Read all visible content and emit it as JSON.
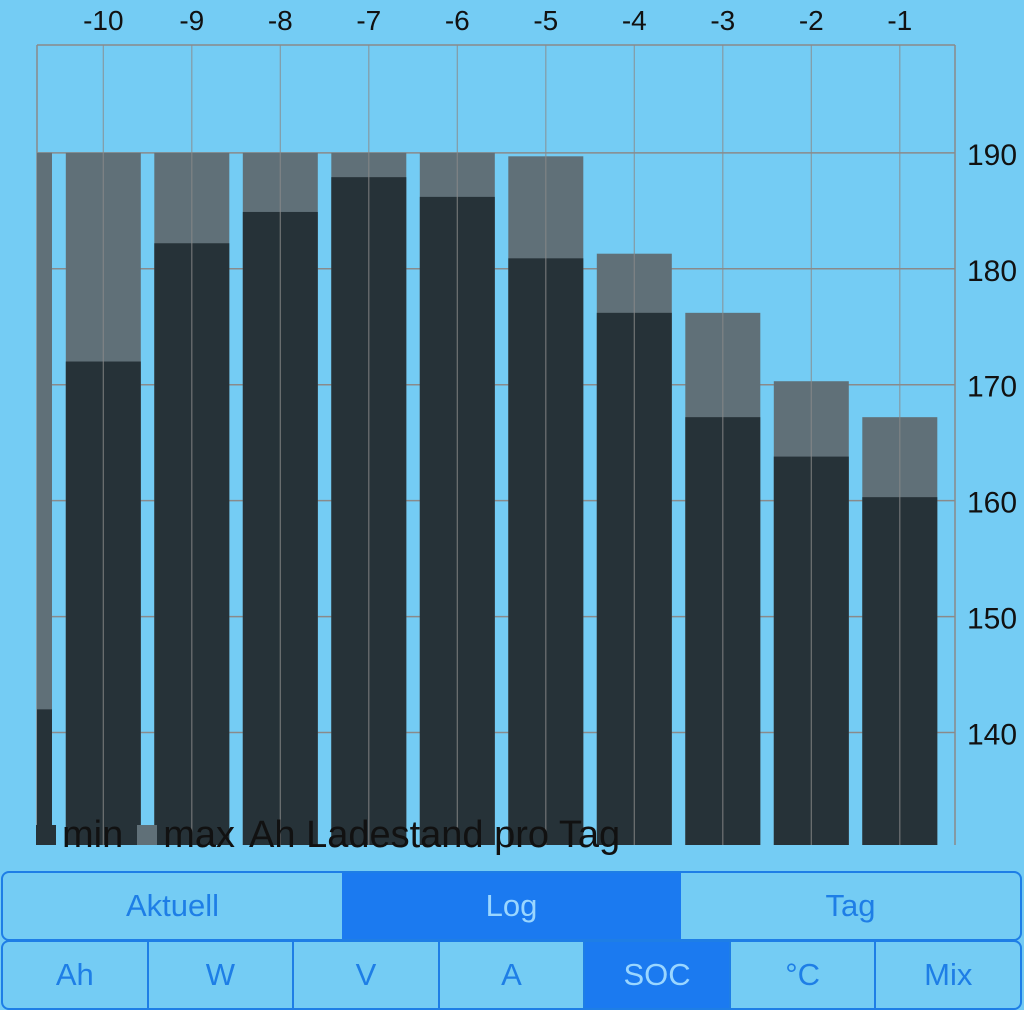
{
  "chart_data": {
    "type": "bar",
    "title": "Ah Ladestand pro Tag",
    "categories": [
      "-10",
      "-9",
      "-8",
      "-7",
      "-6",
      "-5",
      "-4",
      "-3",
      "-2",
      "-1"
    ],
    "partial_bar": {
      "min": 142,
      "max": 190
    },
    "series": [
      {
        "name": "min",
        "values": [
          172,
          182.2,
          184.9,
          187.9,
          186.2,
          180.9,
          176.2,
          167.2,
          163.8,
          160.3
        ]
      },
      {
        "name": "max",
        "values": [
          190,
          190,
          190,
          190,
          190,
          189.7,
          181.3,
          176.2,
          170.3,
          167.2
        ]
      }
    ],
    "ylim": [
      130.3,
      199.3
    ],
    "yticks": [
      140,
      150,
      160,
      170,
      180,
      190
    ],
    "grid": true,
    "legend_position": "bottom-left",
    "colors": {
      "min": "#263238",
      "max": "#607078",
      "grid": "#8a8a8a",
      "background": "#74ccf4"
    }
  },
  "legend": {
    "min_label": "min",
    "max_label": "max",
    "title": "Ah Ladestand pro Tag"
  },
  "mode_tabs": [
    {
      "label": "Aktuell",
      "active": false
    },
    {
      "label": "Log",
      "active": true
    },
    {
      "label": "Tag",
      "active": false
    }
  ],
  "unit_tabs": [
    {
      "label": "Ah",
      "active": false
    },
    {
      "label": "W",
      "active": false
    },
    {
      "label": "V",
      "active": false
    },
    {
      "label": "A",
      "active": false
    },
    {
      "label": "SOC",
      "active": true
    },
    {
      "label": "°C",
      "active": false
    },
    {
      "label": "Mix",
      "active": false
    }
  ]
}
